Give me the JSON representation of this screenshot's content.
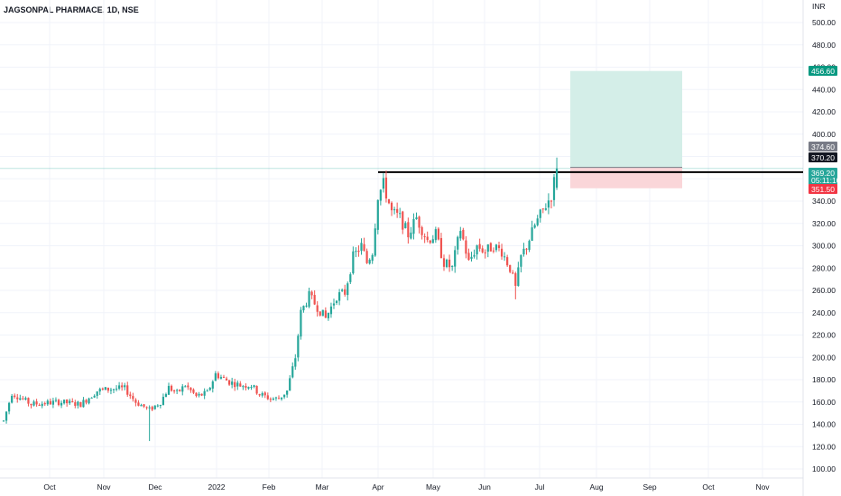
{
  "header": {
    "title": "JAGSONPAL PHARMACE, 1D, NSE"
  },
  "chart_data": {
    "type": "candlestick",
    "title": "JAGSONPAL PHARMACE, 1D, NSE",
    "currency": "INR",
    "ylim": [
      94,
      512
    ],
    "y_ticks": [
      {
        "value": 500,
        "label": "500.00"
      },
      {
        "value": 480,
        "label": "480.00"
      },
      {
        "value": 460,
        "label": "460.00"
      },
      {
        "value": 440,
        "label": "440.00"
      },
      {
        "value": 420,
        "label": "420.00"
      },
      {
        "value": 400,
        "label": "400.00"
      },
      {
        "value": 380,
        "label": "380.00"
      },
      {
        "value": 360,
        "label": "360.00"
      },
      {
        "value": 340,
        "label": "340.00"
      },
      {
        "value": 320,
        "label": "320.00"
      },
      {
        "value": 300,
        "label": "300.00"
      },
      {
        "value": 280,
        "label": "280.00"
      },
      {
        "value": 260,
        "label": "260.00"
      },
      {
        "value": 240,
        "label": "240.00"
      },
      {
        "value": 220,
        "label": "220.00"
      },
      {
        "value": 200,
        "label": "200.00"
      },
      {
        "value": 180,
        "label": "180.00"
      },
      {
        "value": 160,
        "label": "160.00"
      },
      {
        "value": 140,
        "label": "140.00"
      },
      {
        "value": 120,
        "label": "120.00"
      },
      {
        "value": 100,
        "label": "100.00"
      }
    ],
    "x_ticks": [
      "Oct",
      "Nov",
      "Dec",
      "2022",
      "Feb",
      "Mar",
      "Apr",
      "May",
      "Jun",
      "Jul",
      "Aug",
      "Sep",
      "Oct",
      "Nov"
    ],
    "anchors": [
      {
        "i": 0,
        "v": 143
      },
      {
        "i": 3,
        "v": 168
      },
      {
        "i": 10,
        "v": 158
      },
      {
        "i": 20,
        "v": 160
      },
      {
        "i": 28,
        "v": 158
      },
      {
        "i": 34,
        "v": 170
      },
      {
        "i": 40,
        "v": 172
      },
      {
        "i": 44,
        "v": 172
      },
      {
        "i": 48,
        "v": 160
      },
      {
        "i": 53,
        "v": 153
      },
      {
        "i": 57,
        "v": 160
      },
      {
        "i": 60,
        "v": 173
      },
      {
        "i": 63,
        "v": 168
      },
      {
        "i": 66,
        "v": 175
      },
      {
        "i": 70,
        "v": 165
      },
      {
        "i": 74,
        "v": 168
      },
      {
        "i": 77,
        "v": 185
      },
      {
        "i": 82,
        "v": 178
      },
      {
        "i": 86,
        "v": 175
      },
      {
        "i": 90,
        "v": 175
      },
      {
        "i": 93,
        "v": 167
      },
      {
        "i": 97,
        "v": 163
      },
      {
        "i": 100,
        "v": 163
      },
      {
        "i": 103,
        "v": 170
      },
      {
        "i": 106,
        "v": 200
      },
      {
        "i": 108,
        "v": 240
      },
      {
        "i": 111,
        "v": 255
      },
      {
        "i": 114,
        "v": 245
      },
      {
        "i": 117,
        "v": 235
      },
      {
        "i": 121,
        "v": 255
      },
      {
        "i": 124,
        "v": 258
      },
      {
        "i": 127,
        "v": 290
      },
      {
        "i": 130,
        "v": 300
      },
      {
        "i": 132,
        "v": 285
      },
      {
        "i": 134,
        "v": 295
      },
      {
        "i": 136,
        "v": 345
      },
      {
        "i": 138,
        "v": 355
      },
      {
        "i": 141,
        "v": 330
      },
      {
        "i": 144,
        "v": 325
      },
      {
        "i": 147,
        "v": 310
      },
      {
        "i": 150,
        "v": 325
      },
      {
        "i": 154,
        "v": 305
      },
      {
        "i": 157,
        "v": 310
      },
      {
        "i": 160,
        "v": 285
      },
      {
        "i": 163,
        "v": 280
      },
      {
        "i": 166,
        "v": 315
      },
      {
        "i": 169,
        "v": 285
      },
      {
        "i": 172,
        "v": 300
      },
      {
        "i": 175,
        "v": 295
      },
      {
        "i": 178,
        "v": 300
      },
      {
        "i": 181,
        "v": 295
      },
      {
        "i": 184,
        "v": 280
      },
      {
        "i": 186,
        "v": 262
      },
      {
        "i": 188,
        "v": 290
      },
      {
        "i": 190,
        "v": 300
      },
      {
        "i": 193,
        "v": 318
      },
      {
        "i": 196,
        "v": 332
      },
      {
        "i": 199,
        "v": 345
      },
      {
        "i": 201,
        "v": 370
      }
    ],
    "candle_count": 202,
    "last_candle": {
      "open": 352,
      "high": 379,
      "low": 350,
      "close": 369.2
    },
    "resistance_line": {
      "value": 366
    },
    "position": {
      "entry": 370.2,
      "target": 456.6,
      "stop": 351.5
    },
    "price_badges": [
      {
        "value": 456.6,
        "label": "456.60",
        "color": "#089981"
      },
      {
        "value": 374.6,
        "label": "374.60",
        "color": "#787b86"
      },
      {
        "value": 370.2,
        "label": "370.20",
        "color": "#131722"
      },
      {
        "value": 369.2,
        "label": "369.20",
        "sub": "05:11:10",
        "color": "#26a69a"
      },
      {
        "value": 351.5,
        "label": "351.50",
        "color": "#f23645"
      }
    ],
    "colors": {
      "up": "#26a69a",
      "down": "#ef5350",
      "profit": "#d4eee8",
      "loss": "#fad6d9",
      "line": "#000000",
      "grid": "#f0f3fa"
    }
  }
}
